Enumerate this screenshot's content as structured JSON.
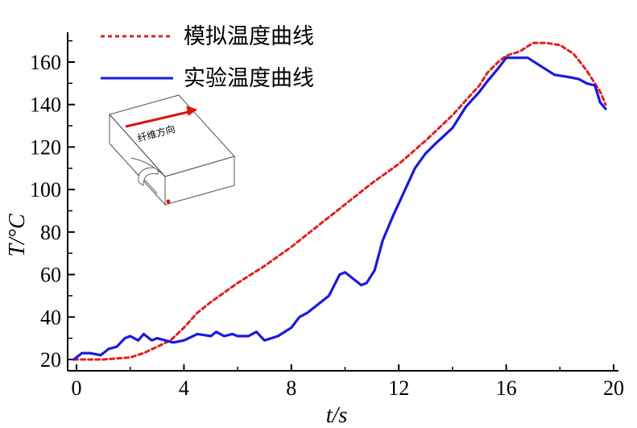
{
  "chart_data": {
    "type": "line",
    "xlabel": "t/s",
    "ylabel": "T/°C",
    "xlim": [
      -0.3,
      20
    ],
    "ylim": [
      17,
      173
    ],
    "xticks": [
      "0",
      "4",
      "8",
      "12",
      "16",
      "20"
    ],
    "yticks": [
      "20",
      "40",
      "60",
      "80",
      "100",
      "120",
      "140",
      "160"
    ],
    "legend_position": "top-center",
    "series": [
      {
        "name": "模拟温度曲线",
        "color": "#e02020",
        "style": "dashed",
        "x": [
          -0.1,
          1.0,
          2.0,
          2.5,
          3.0,
          3.5,
          4.0,
          4.5,
          5.0,
          6.0,
          7.0,
          8.0,
          9.0,
          10.0,
          11.0,
          12.0,
          13.0,
          14.0,
          14.5,
          15.0,
          15.3,
          15.7,
          16.0,
          16.5,
          17.0,
          17.5,
          18.0,
          18.5,
          19.0,
          19.5,
          19.7
        ],
        "y": [
          20,
          20,
          21,
          23,
          26,
          29,
          35,
          42,
          47,
          56,
          64,
          73,
          83,
          93,
          103,
          112,
          123,
          135,
          142,
          149,
          155,
          160,
          163,
          165,
          169,
          169,
          168,
          164,
          156,
          146,
          140
        ]
      },
      {
        "name": "实验温度曲线",
        "color": "#1a1adc",
        "style": "solid",
        "x": [
          -0.1,
          0.2,
          0.5,
          0.9,
          1.2,
          1.5,
          1.8,
          2.0,
          2.3,
          2.5,
          2.8,
          3.0,
          3.3,
          3.6,
          4.0,
          4.5,
          5.0,
          5.2,
          5.5,
          5.8,
          6.0,
          6.4,
          6.7,
          7.0,
          7.5,
          8.0,
          8.3,
          8.6,
          9.0,
          9.4,
          9.8,
          10.0,
          10.3,
          10.6,
          10.8,
          11.1,
          11.4,
          11.8,
          12.2,
          12.6,
          13.0,
          13.4,
          14.0,
          14.5,
          15.0,
          15.3,
          15.7,
          16.0,
          16.3,
          16.8,
          17.3,
          17.8,
          18.3,
          18.7,
          19.0,
          19.3,
          19.5,
          19.7
        ],
        "y": [
          20,
          23,
          23,
          22,
          25,
          26,
          30,
          31,
          29,
          32,
          29,
          30,
          29,
          28,
          29,
          32,
          31,
          33,
          31,
          32,
          31,
          31,
          33,
          29,
          31,
          35,
          40,
          42,
          46,
          50,
          60,
          61,
          58,
          55,
          56,
          62,
          76,
          88,
          99,
          110,
          117,
          122,
          129,
          139,
          146,
          151,
          157,
          162,
          162,
          162,
          158,
          154,
          153,
          152,
          150,
          149,
          141,
          138
        ]
      }
    ],
    "inset": {
      "label": "纤维方向"
    }
  }
}
